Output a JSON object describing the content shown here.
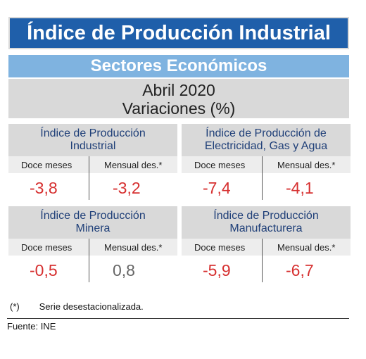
{
  "title": "Índice de Producción Industrial",
  "subtitle": "Sectores Económicos",
  "period": {
    "line1": "Abril 2020",
    "line2": "Variaciones (%)"
  },
  "labels": {
    "twelve_months": "Doce meses",
    "monthly": "Mensual des.*"
  },
  "panels": [
    {
      "name_line1": "Índice de Producción",
      "name_line2": "Industrial",
      "twelve_months": "-3,8",
      "monthly": "-3,2"
    },
    {
      "name_line1": "Índice de Producción de",
      "name_line2": "Electricidad, Gas y Agua",
      "twelve_months": "-7,4",
      "monthly": "-4,1"
    },
    {
      "name_line1": "Índice de Producción",
      "name_line2": "Minera",
      "twelve_months": "-0,5",
      "monthly": "0,8"
    },
    {
      "name_line1": "Índice de Producción",
      "name_line2": "Manufacturera",
      "twelve_months": "-5,9",
      "monthly": "-6,7"
    }
  ],
  "colors": {
    "title_bg": "#1f5faa",
    "subtitle_bg": "#7fb3e0",
    "negative": "#d62f2f",
    "positive": "#666666"
  },
  "footnote": {
    "mark": "(*)",
    "text": "Serie desestacionalizada."
  },
  "source": "Fuente: INE"
}
